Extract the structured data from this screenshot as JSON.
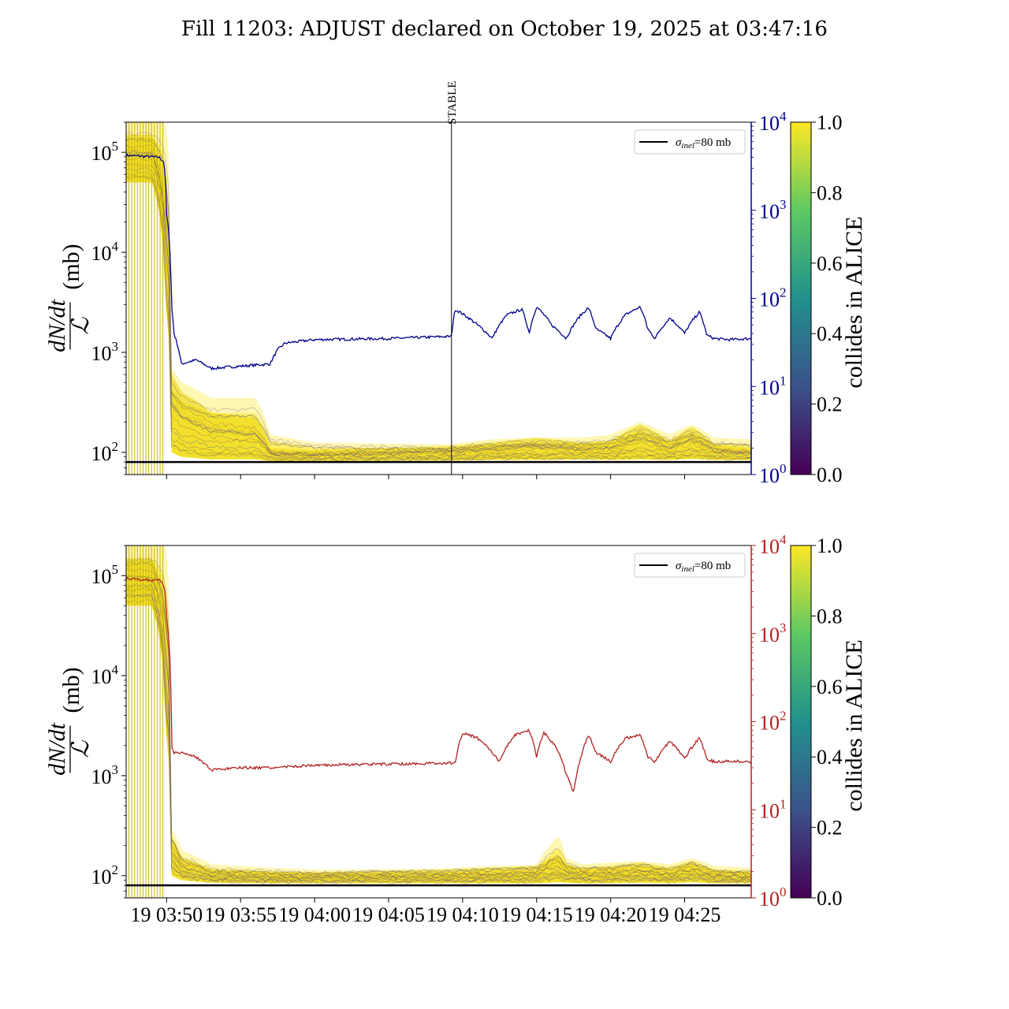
{
  "title": "Fill 11203: ADJUST declared on October 19, 2025 at 03:47:16",
  "colors": {
    "top_line": "#00008b",
    "bottom_line": "#b22222",
    "reference_line": "#000000",
    "viridis": [
      "#440154",
      "#3b528b",
      "#21918c",
      "#5ec962",
      "#fde725"
    ]
  },
  "chart_data": [
    {
      "type": "line",
      "panel": "top",
      "ylabel_left": "dN/dt / ℒ (mb)",
      "ylabel_left_parts": {
        "num": "dN/dt",
        "den": "ℒ",
        "unit": "(mb)"
      },
      "yscale_left": "log",
      "ylim_left": [
        60,
        200000
      ],
      "yticks_left": [
        {
          "value": 100,
          "base": "10",
          "exp": "2"
        },
        {
          "value": 1000,
          "base": "10",
          "exp": "3"
        },
        {
          "value": 10000,
          "base": "10",
          "exp": "4"
        },
        {
          "value": 100000,
          "base": "10",
          "exp": "5"
        }
      ],
      "yscale_right": "log",
      "ylim_right": [
        1,
        10000
      ],
      "yticks_right": [
        {
          "value": 1,
          "base": "10",
          "exp": "0"
        },
        {
          "value": 10,
          "base": "10",
          "exp": "1"
        },
        {
          "value": 100,
          "base": "10",
          "exp": "2"
        },
        {
          "value": 1000,
          "base": "10",
          "exp": "3"
        },
        {
          "value": 10000,
          "base": "10",
          "exp": "4"
        }
      ],
      "xlim": [
        "03:47:16",
        "04:29:30"
      ],
      "xtick_labels": [],
      "annotation": {
        "text": "STABLE",
        "x": "04:09:15"
      },
      "legend": {
        "position": "upper right",
        "label": "σ",
        "label_sub": "inel",
        "label_rest": "=80 mb"
      },
      "reference_line": {
        "y": 80
      },
      "colorbar": {
        "label": "collides in ALICE",
        "ticks": [
          "0.0",
          "0.2",
          "0.4",
          "0.6",
          "0.8",
          "1.0"
        ]
      },
      "right_axis_series": {
        "time": [
          "03:47:16",
          "03:49:30",
          "03:49:50",
          "03:50:00",
          "03:50:20",
          "03:50:30",
          "03:51:00",
          "03:52:00",
          "03:53:00",
          "03:55:00",
          "03:57:00",
          "03:57:30",
          "03:58:00",
          "04:00:00",
          "04:05:00",
          "04:09:15",
          "04:09:30",
          "04:11:00",
          "04:12:00",
          "04:13:00",
          "04:14:00",
          "04:14:30",
          "04:15:00",
          "04:16:00",
          "04:17:00",
          "04:18:00",
          "04:18:30",
          "04:19:00",
          "04:20:00",
          "04:21:00",
          "04:22:00",
          "04:22:30",
          "04:23:00",
          "04:24:00",
          "04:25:00",
          "04:26:00",
          "04:26:30",
          "04:27:00",
          "04:28:00",
          "04:29:30"
        ],
        "values": [
          4200,
          4000,
          3500,
          900,
          80,
          40,
          18,
          20,
          16,
          17,
          18,
          26,
          31,
          34,
          35,
          37,
          75,
          50,
          35,
          65,
          75,
          40,
          80,
          50,
          35,
          65,
          78,
          45,
          35,
          65,
          80,
          45,
          35,
          60,
          40,
          70,
          38,
          35,
          34,
          35
        ]
      },
      "left_axis_bands": {
        "time": [
          "03:47:16",
          "03:49:00",
          "03:49:55",
          "03:50:20",
          "03:51:00",
          "03:53:00",
          "03:56:00",
          "03:57:00",
          "04:00:00",
          "04:09:00",
          "04:12:00",
          "04:15:00",
          "04:18:00",
          "04:20:00",
          "04:22:00",
          "04:24:00",
          "04:25:30",
          "04:27:00",
          "04:29:30"
        ],
        "low": [
          50000,
          50000,
          3000,
          100,
          90,
          85,
          85,
          82,
          82,
          83,
          84,
          84,
          85,
          84,
          85,
          84,
          86,
          84,
          84
        ],
        "high": [
          200000,
          200000,
          200000,
          700,
          500,
          350,
          350,
          150,
          125,
          120,
          135,
          140,
          140,
          150,
          200,
          150,
          190,
          140,
          135
        ],
        "purple_high": [
          150000,
          150000,
          50000,
          600,
          400,
          250,
          220,
          110,
          105,
          115,
          125,
          140,
          125,
          130,
          190,
          130,
          180,
          120,
          110
        ]
      }
    },
    {
      "type": "line",
      "panel": "bottom",
      "ylabel_left": "dN/dt / ℒ (mb)",
      "ylabel_left_parts": {
        "num": "dN/dt",
        "den": "ℒ",
        "unit": "(mb)"
      },
      "yscale_left": "log",
      "ylim_left": [
        60,
        200000
      ],
      "yticks_left": [
        {
          "value": 100,
          "base": "10",
          "exp": "2"
        },
        {
          "value": 1000,
          "base": "10",
          "exp": "3"
        },
        {
          "value": 10000,
          "base": "10",
          "exp": "4"
        },
        {
          "value": 100000,
          "base": "10",
          "exp": "5"
        }
      ],
      "yscale_right": "log",
      "ylim_right": [
        1,
        10000
      ],
      "yticks_right": [
        {
          "value": 1,
          "base": "10",
          "exp": "0"
        },
        {
          "value": 10,
          "base": "10",
          "exp": "1"
        },
        {
          "value": 100,
          "base": "10",
          "exp": "2"
        },
        {
          "value": 1000,
          "base": "10",
          "exp": "3"
        },
        {
          "value": 10000,
          "base": "10",
          "exp": "4"
        }
      ],
      "xlim": [
        "03:47:16",
        "04:29:30"
      ],
      "xtick_labels": [
        {
          "time": "03:50:00",
          "label": "19 03:50"
        },
        {
          "time": "03:55:00",
          "label": "19 03:55"
        },
        {
          "time": "04:00:00",
          "label": "19 04:00"
        },
        {
          "time": "04:05:00",
          "label": "19 04:05"
        },
        {
          "time": "04:10:00",
          "label": "19 04:10"
        },
        {
          "time": "04:15:00",
          "label": "19 04:15"
        },
        {
          "time": "04:20:00",
          "label": "19 04:20"
        },
        {
          "time": "04:25:00",
          "label": "19 04:25"
        }
      ],
      "legend": {
        "position": "upper right",
        "label": "σ",
        "label_sub": "inel",
        "label_rest": "=80 mb"
      },
      "reference_line": {
        "y": 80
      },
      "colorbar": {
        "label": "collides in ALICE",
        "ticks": [
          "0.0",
          "0.2",
          "0.4",
          "0.6",
          "0.8",
          "1.0"
        ]
      },
      "right_axis_series": {
        "time": [
          "03:47:16",
          "03:49:30",
          "03:49:50",
          "03:50:00",
          "03:50:20",
          "03:50:30",
          "03:51:00",
          "03:52:00",
          "03:53:00",
          "03:55:00",
          "03:57:00",
          "04:00:00",
          "04:05:00",
          "04:09:30",
          "04:10:00",
          "04:11:00",
          "04:12:30",
          "04:13:30",
          "04:14:30",
          "04:15:00",
          "04:15:30",
          "04:16:30",
          "04:17:00",
          "04:17:30",
          "04:18:00",
          "04:18:30",
          "04:19:00",
          "04:20:00",
          "04:21:00",
          "04:22:00",
          "04:22:30",
          "04:23:00",
          "04:24:00",
          "04:25:00",
          "04:26:00",
          "04:26:30",
          "04:27:00",
          "04:28:00",
          "04:29:30"
        ],
        "values": [
          4200,
          4000,
          3500,
          1500,
          50,
          45,
          45,
          40,
          28,
          30,
          30,
          32,
          33,
          34,
          75,
          65,
          35,
          70,
          80,
          40,
          75,
          45,
          25,
          15,
          40,
          70,
          45,
          35,
          65,
          70,
          40,
          35,
          60,
          38,
          65,
          38,
          35,
          36,
          35
        ]
      },
      "left_axis_bands": {
        "time": [
          "03:47:16",
          "03:49:00",
          "03:49:55",
          "03:50:20",
          "03:51:00",
          "03:53:00",
          "03:57:00",
          "04:00:00",
          "04:09:00",
          "04:12:00",
          "04:15:00",
          "04:16:30",
          "04:17:00",
          "04:18:00",
          "04:20:00",
          "04:22:00",
          "04:24:00",
          "04:25:30",
          "04:27:00",
          "04:29:30"
        ],
        "low": [
          50000,
          50000,
          3000,
          100,
          90,
          85,
          84,
          84,
          84,
          84,
          84,
          86,
          85,
          84,
          84,
          85,
          84,
          86,
          84,
          84
        ],
        "high": [
          200000,
          200000,
          200000,
          300,
          180,
          130,
          120,
          115,
          118,
          125,
          128,
          250,
          150,
          130,
          135,
          140,
          130,
          150,
          125,
          120
        ],
        "purple_high": [
          150000,
          150000,
          50000,
          250,
          150,
          115,
          110,
          108,
          115,
          120,
          125,
          160,
          130,
          120,
          125,
          135,
          120,
          140,
          115,
          110
        ]
      }
    }
  ]
}
